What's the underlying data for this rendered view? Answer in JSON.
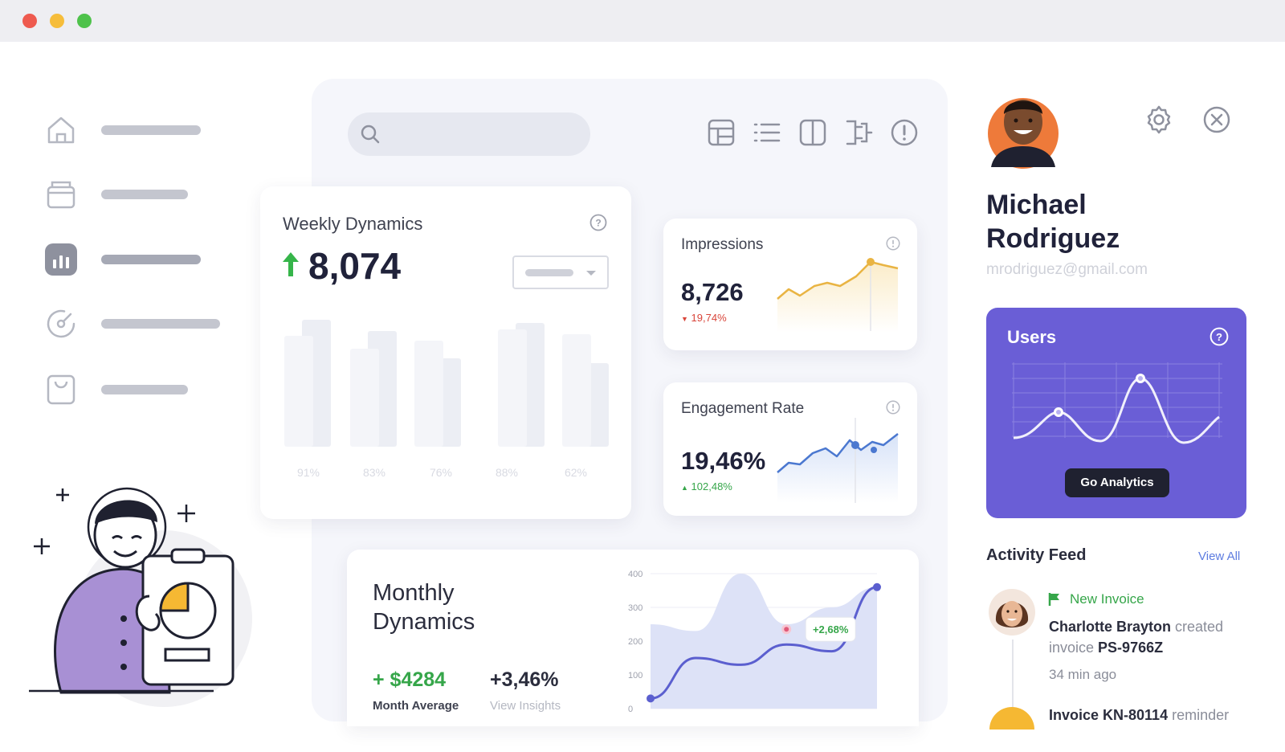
{
  "window": {
    "controls": {
      "close_color": "#ee5a4f",
      "minimize_color": "#f6bd3b",
      "maximize_color": "#4ec24b"
    }
  },
  "sidebar": {
    "items": [
      {
        "icon": "home-icon"
      },
      {
        "icon": "archive-icon"
      },
      {
        "icon": "bar-chart-icon",
        "active": true
      },
      {
        "icon": "gauge-icon"
      },
      {
        "icon": "shopping-bag-icon"
      }
    ]
  },
  "toolbar": {
    "icons": [
      "table-icon",
      "list-icon",
      "columns-icon",
      "flow-icon",
      "info-icon"
    ]
  },
  "weekly": {
    "title": "Weekly Dynamics",
    "value": "8,074",
    "labels": [
      "91%",
      "83%",
      "76%",
      "88%",
      "62%"
    ]
  },
  "impressions": {
    "title": "Impressions",
    "value": "8,726",
    "change": "19,74%",
    "color": "#e9b443"
  },
  "engagement": {
    "title": "Engagement Rate",
    "value": "19,46%",
    "change": "102,48%",
    "color": "#4b78d0"
  },
  "monthly": {
    "title_line1": "Monthly",
    "title_line2": "Dynamics",
    "amount": "+ $4284",
    "amount_label": "Month Average",
    "percent": "+3,46%",
    "percent_label": "View Insights",
    "tooltip": "+2,68%"
  },
  "chart_data": {
    "type": "area",
    "y_ticks": [
      "400",
      "300",
      "200",
      "100",
      "0"
    ],
    "ylim": [
      0,
      400
    ],
    "series": [
      {
        "values": [
          30,
          150,
          130,
          190,
          170,
          360
        ]
      },
      {
        "values": [
          250,
          230,
          420,
          250,
          300,
          360
        ]
      }
    ],
    "tooltip": "+2,68%"
  },
  "profile": {
    "first_name": "Michael",
    "last_name": "Rodriguez",
    "email": "mrodriguez@gmail.com"
  },
  "users_card": {
    "title": "Users",
    "button": "Go Analytics",
    "background": "#6a5ed6"
  },
  "activity": {
    "title": "Activity Feed",
    "view_all": "View All",
    "items": [
      {
        "tag": "New Invoice",
        "person": "Charlotte Brayton",
        "verb": "created",
        "object_prefix": "invoice",
        "object": "PS-9766Z",
        "time": "34  min ago"
      },
      {
        "object": "Invoice KN-80114",
        "verb": "reminder"
      }
    ]
  }
}
